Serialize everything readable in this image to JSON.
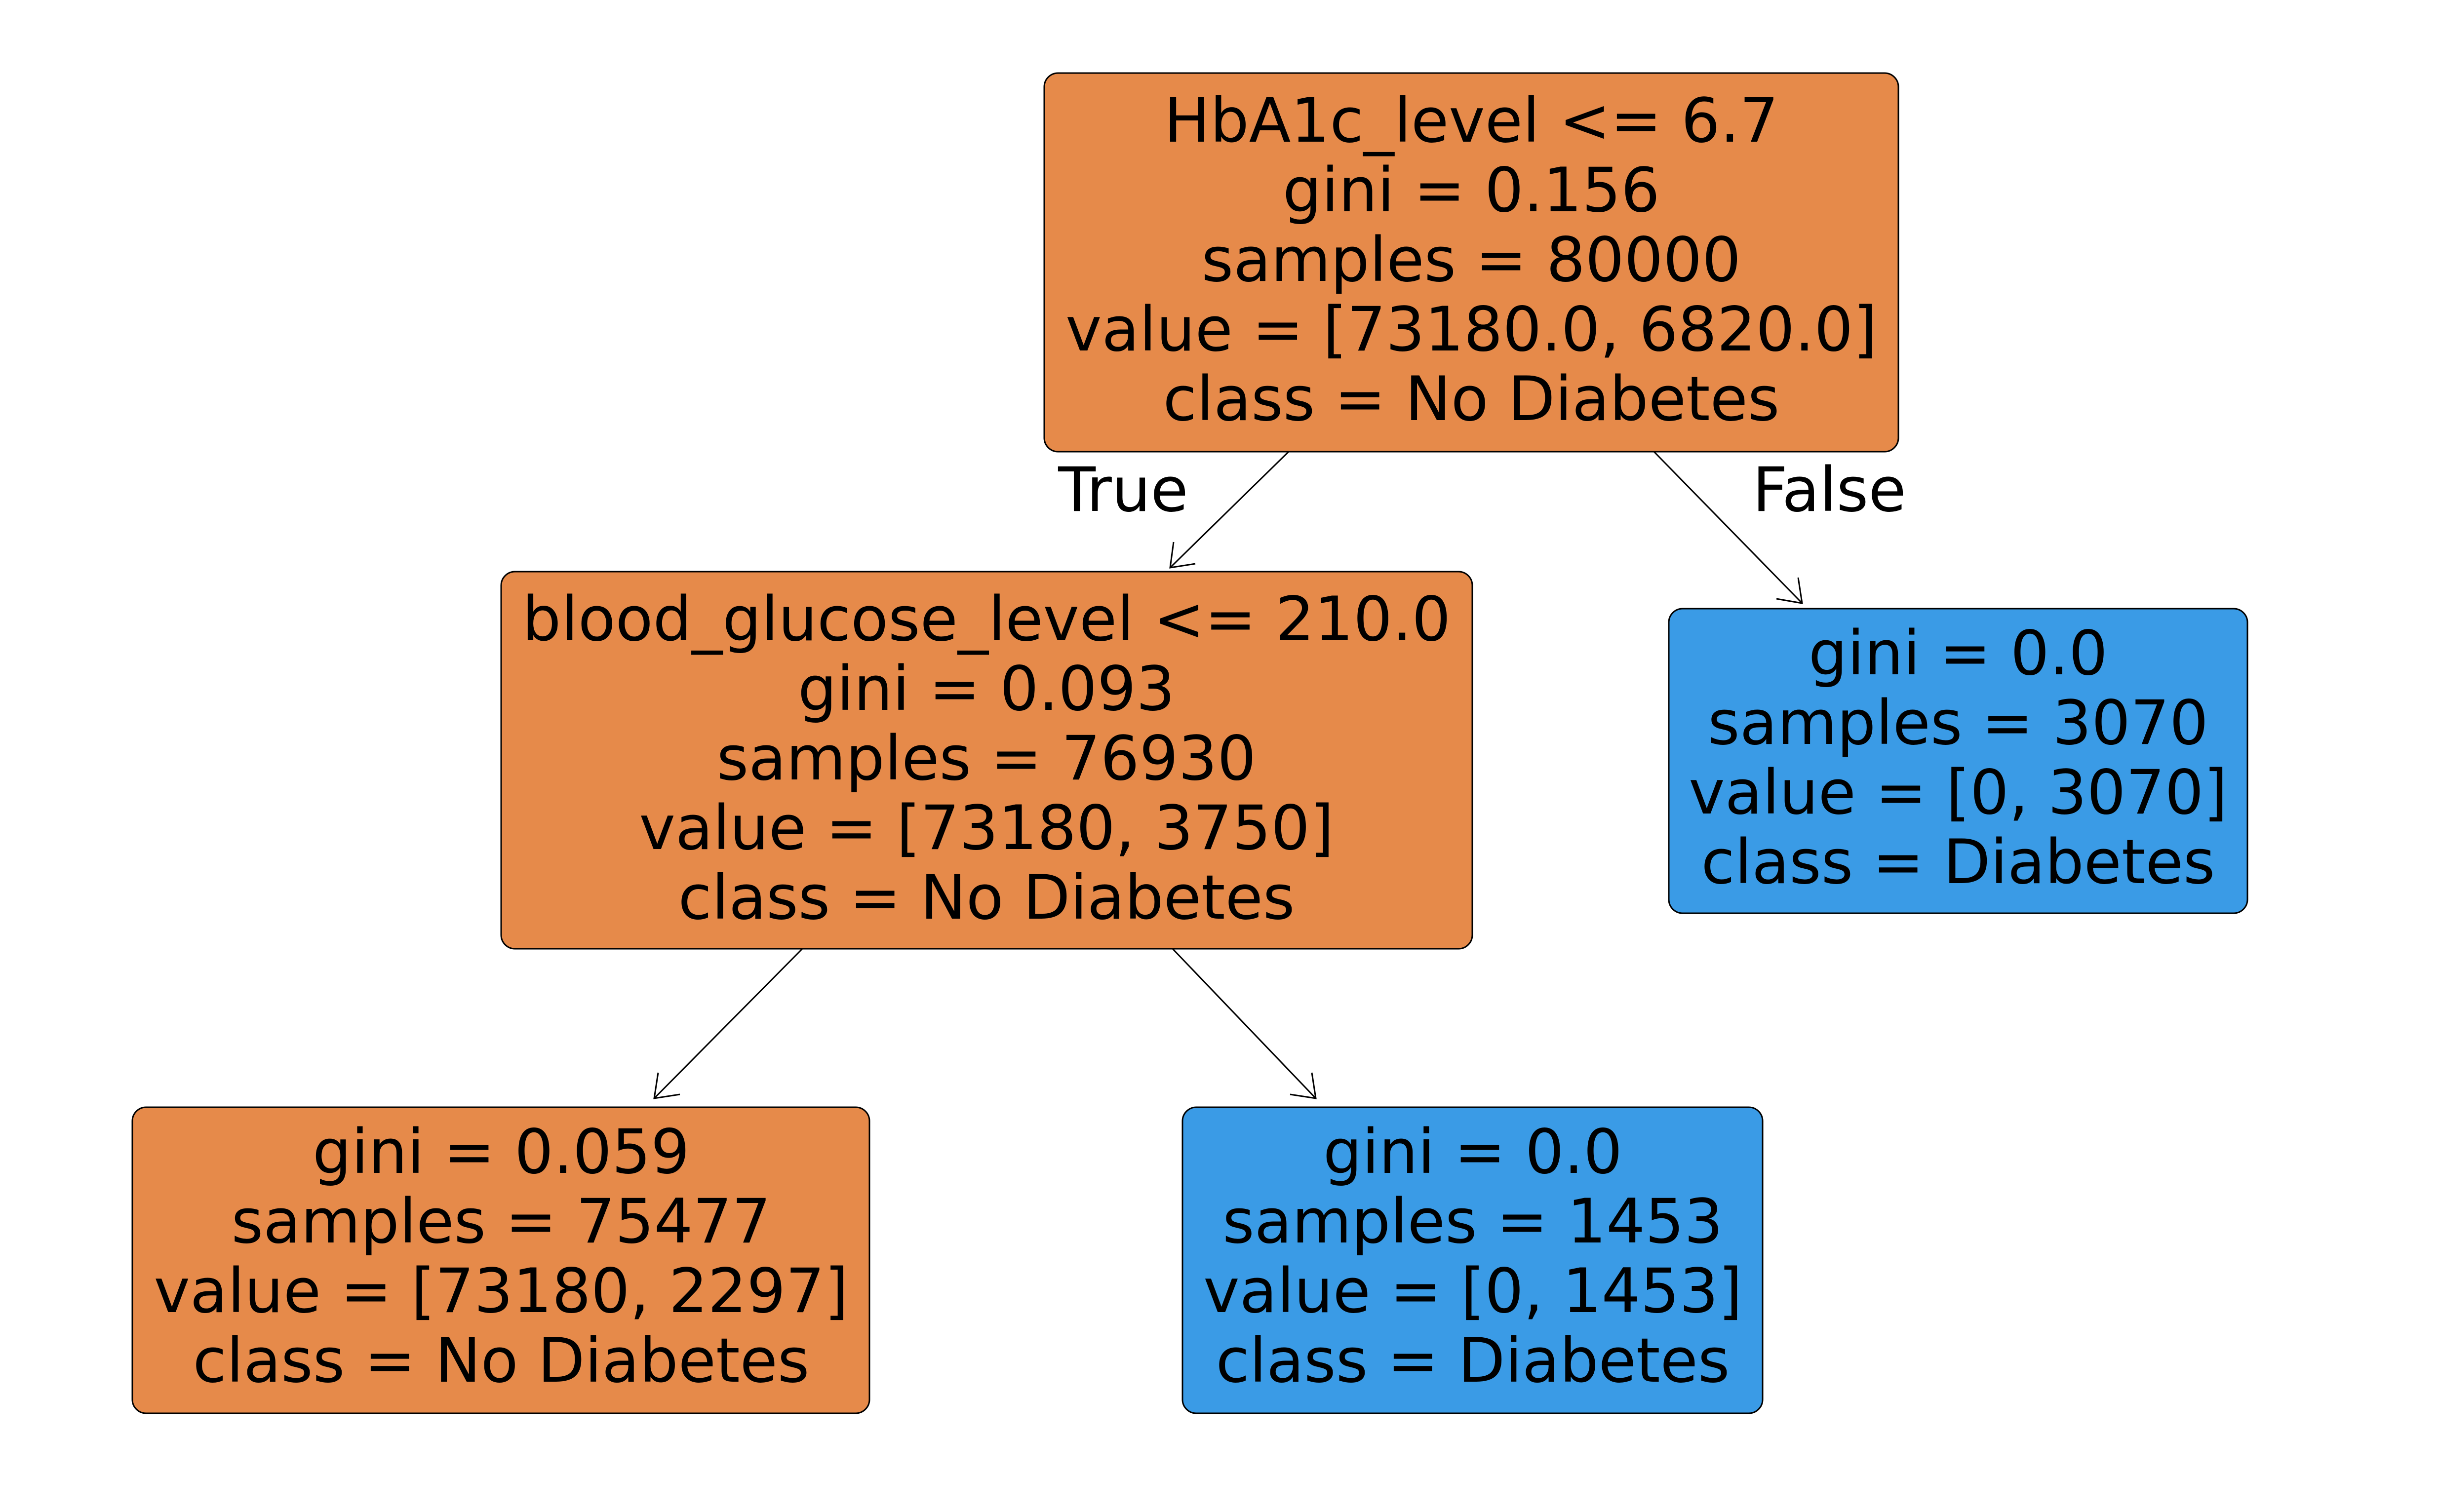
{
  "colors": {
    "no_diabetes": "#e68a4a",
    "diabetes": "#3a9be6"
  },
  "tree": {
    "nodes": [
      {
        "id": "root",
        "split": "HbA1c_level <= 6.7",
        "gini": "gini = 0.156",
        "samples": "samples = 80000",
        "value": "value = [73180.0, 6820.0]",
        "class_label": "class = No Diabetes",
        "class": "no_diabetes"
      },
      {
        "id": "left",
        "split": "blood_glucose_level <= 210.0",
        "gini": "gini = 0.093",
        "samples": "samples = 76930",
        "value": "value = [73180, 3750]",
        "class_label": "class = No Diabetes",
        "class": "no_diabetes"
      },
      {
        "id": "right",
        "gini": "gini = 0.0",
        "samples": "samples = 3070",
        "value": "value = [0, 3070]",
        "class_label": "class = Diabetes",
        "class": "diabetes"
      },
      {
        "id": "left-left",
        "gini": "gini = 0.059",
        "samples": "samples = 75477",
        "value": "value = [73180, 2297]",
        "class_label": "class = No Diabetes",
        "class": "no_diabetes"
      },
      {
        "id": "left-right",
        "gini": "gini = 0.0",
        "samples": "samples = 1453",
        "value": "value = [0, 1453]",
        "class_label": "class = Diabetes",
        "class": "diabetes"
      }
    ],
    "edges": [
      {
        "from": "root",
        "to": "left",
        "label": "True"
      },
      {
        "from": "root",
        "to": "right",
        "label": "False"
      },
      {
        "from": "left",
        "to": "left-left",
        "label": ""
      },
      {
        "from": "left",
        "to": "left-right",
        "label": ""
      }
    ]
  }
}
